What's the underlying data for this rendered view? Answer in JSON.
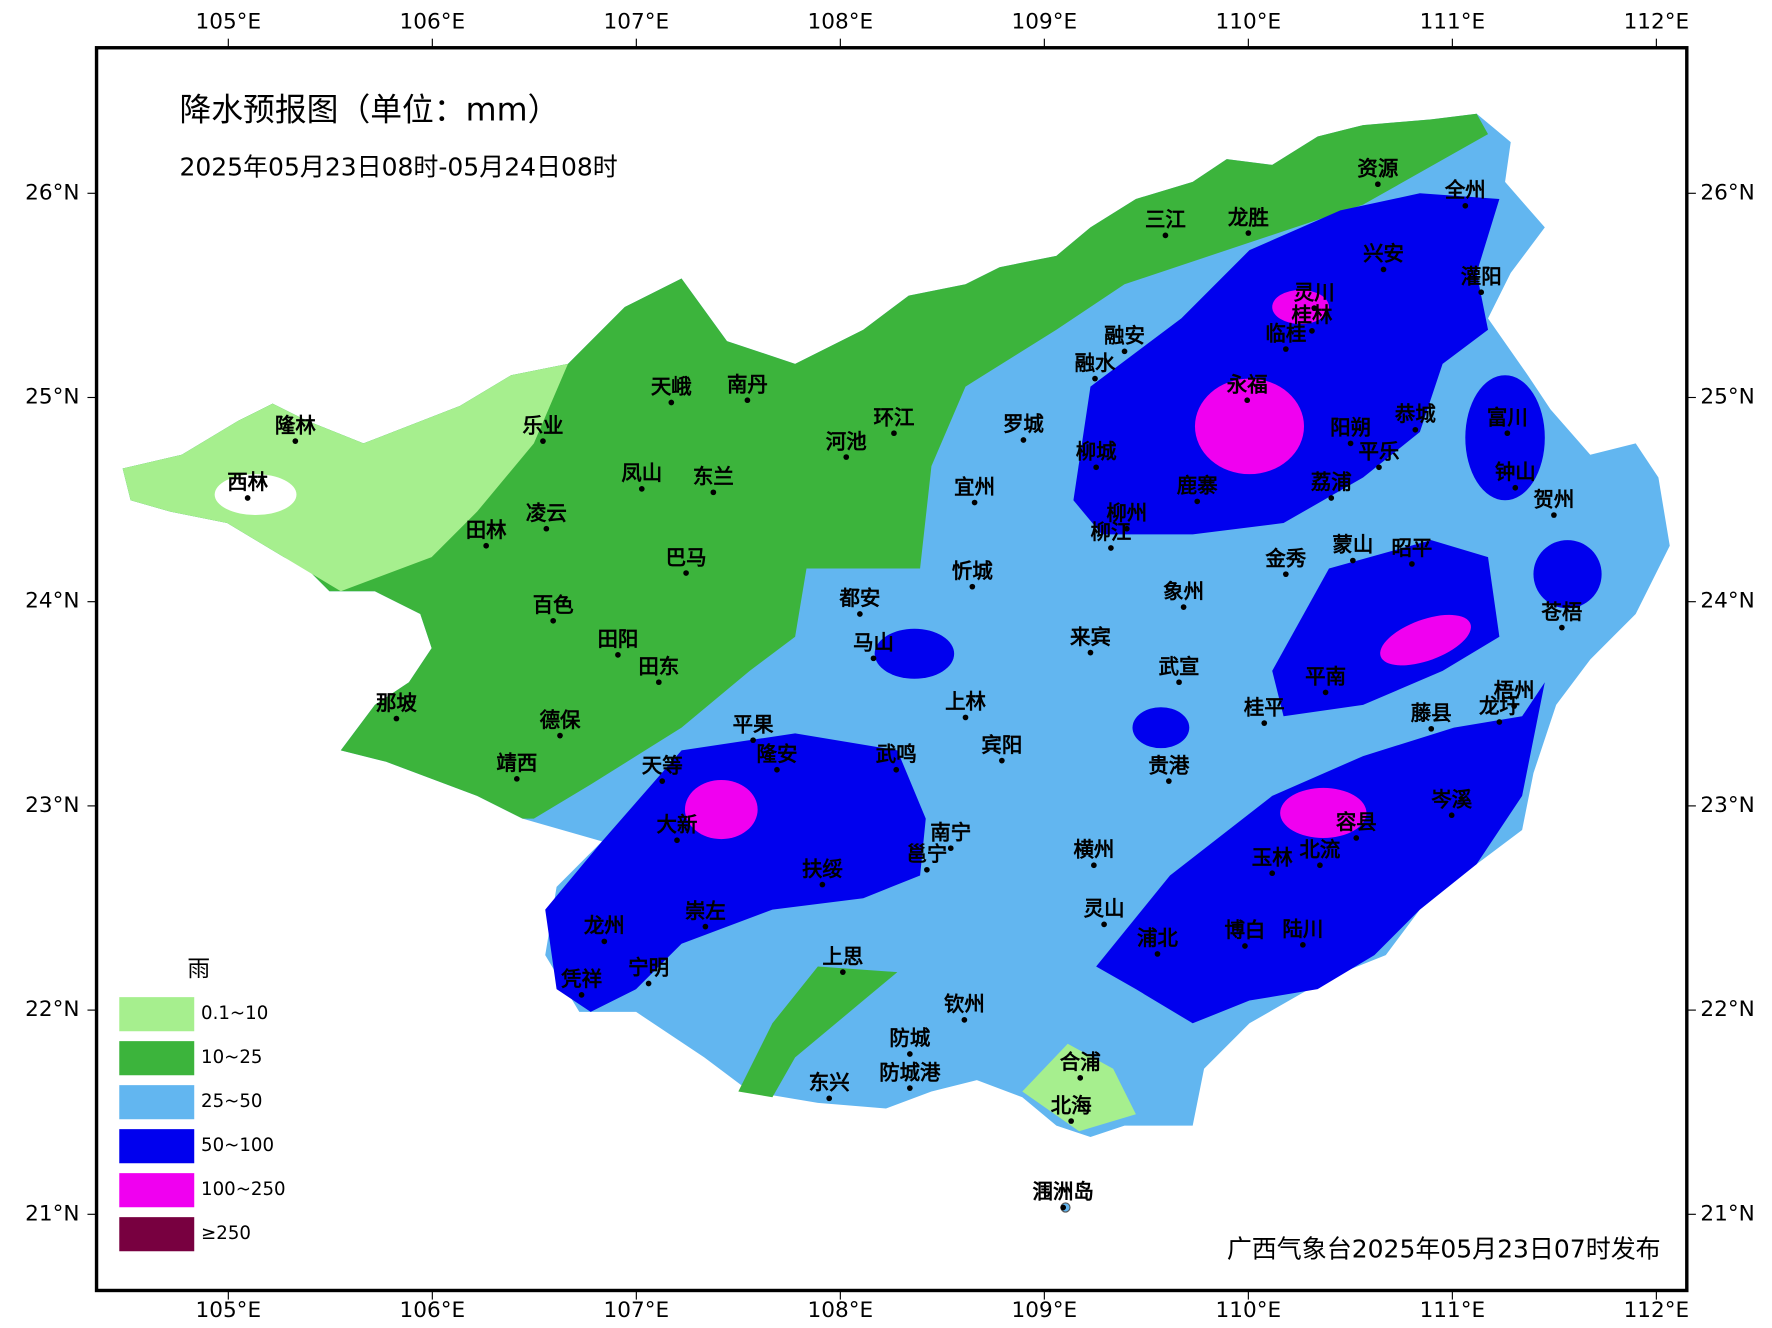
{
  "header": {
    "title": "降水预报图（单位：mm）",
    "subtitle": "2025年05月23日08时-05月24日08时"
  },
  "footer": "广西气象台2025年05月23日07时发布",
  "lon_ticks": [
    {
      "value": 105,
      "label": "105°E"
    },
    {
      "value": 106,
      "label": "106°E"
    },
    {
      "value": 107,
      "label": "107°E"
    },
    {
      "value": 108,
      "label": "108°E"
    },
    {
      "value": 109,
      "label": "109°E"
    },
    {
      "value": 110,
      "label": "110°E"
    },
    {
      "value": 111,
      "label": "111°E"
    },
    {
      "value": 112,
      "label": "112°E"
    }
  ],
  "lat_ticks": [
    {
      "value": 21,
      "label": "21°N"
    },
    {
      "value": 22,
      "label": "22°N"
    },
    {
      "value": 23,
      "label": "23°N"
    },
    {
      "value": 24,
      "label": "24°N"
    },
    {
      "value": 25,
      "label": "25°N"
    },
    {
      "value": 26,
      "label": "26°N"
    }
  ],
  "cities": [
    "隆林",
    "西林",
    "乐业",
    "田林",
    "凌云",
    "天峨",
    "南丹",
    "凤山",
    "东兰",
    "巴马",
    "百色",
    "田阳",
    "田东",
    "那坡",
    "德保",
    "靖西",
    "环江",
    "河池",
    "三江",
    "龙胜",
    "资源",
    "全州",
    "兴安",
    "灌阳",
    "灵川",
    "桂林",
    "临桂",
    "融安",
    "融水",
    "永福",
    "罗城",
    "宜州",
    "柳城",
    "鹿寨",
    "柳州",
    "柳江",
    "阳朔",
    "恭城",
    "平乐",
    "荔浦",
    "富川",
    "钟山",
    "贺州",
    "金秀",
    "蒙山",
    "昭平",
    "忻城",
    "都安",
    "马山",
    "象州",
    "来宾",
    "武宣",
    "桂平",
    "平南",
    "藤县",
    "苍梧",
    "梧州",
    "龙圩",
    "上林",
    "平果",
    "隆安",
    "武鸣",
    "宾阳",
    "贵港",
    "天等",
    "大新",
    "南宁",
    "邕宁",
    "横州",
    "扶绥",
    "崇左",
    "龙州",
    "宁明",
    "凭祥",
    "上思",
    "灵山",
    "浦北",
    "博白",
    "陆川",
    "玉林",
    "北流",
    "容县",
    "岑溪",
    "钦州",
    "防城",
    "防城港",
    "东兴",
    "合浦",
    "北海",
    "涠洲岛"
  ],
  "legend": {
    "title": "雨",
    "items": [
      {
        "label": "0.1~10",
        "color": "#a6ef8e"
      },
      {
        "label": "10~25",
        "color": "#3cb43c"
      },
      {
        "label": "25~50",
        "color": "#62b6f0"
      },
      {
        "label": "50~100",
        "color": "#0000ee"
      },
      {
        "label": "100~250",
        "color": "#f000f0"
      },
      {
        "label": "≥250",
        "color": "#780040"
      }
    ]
  }
}
